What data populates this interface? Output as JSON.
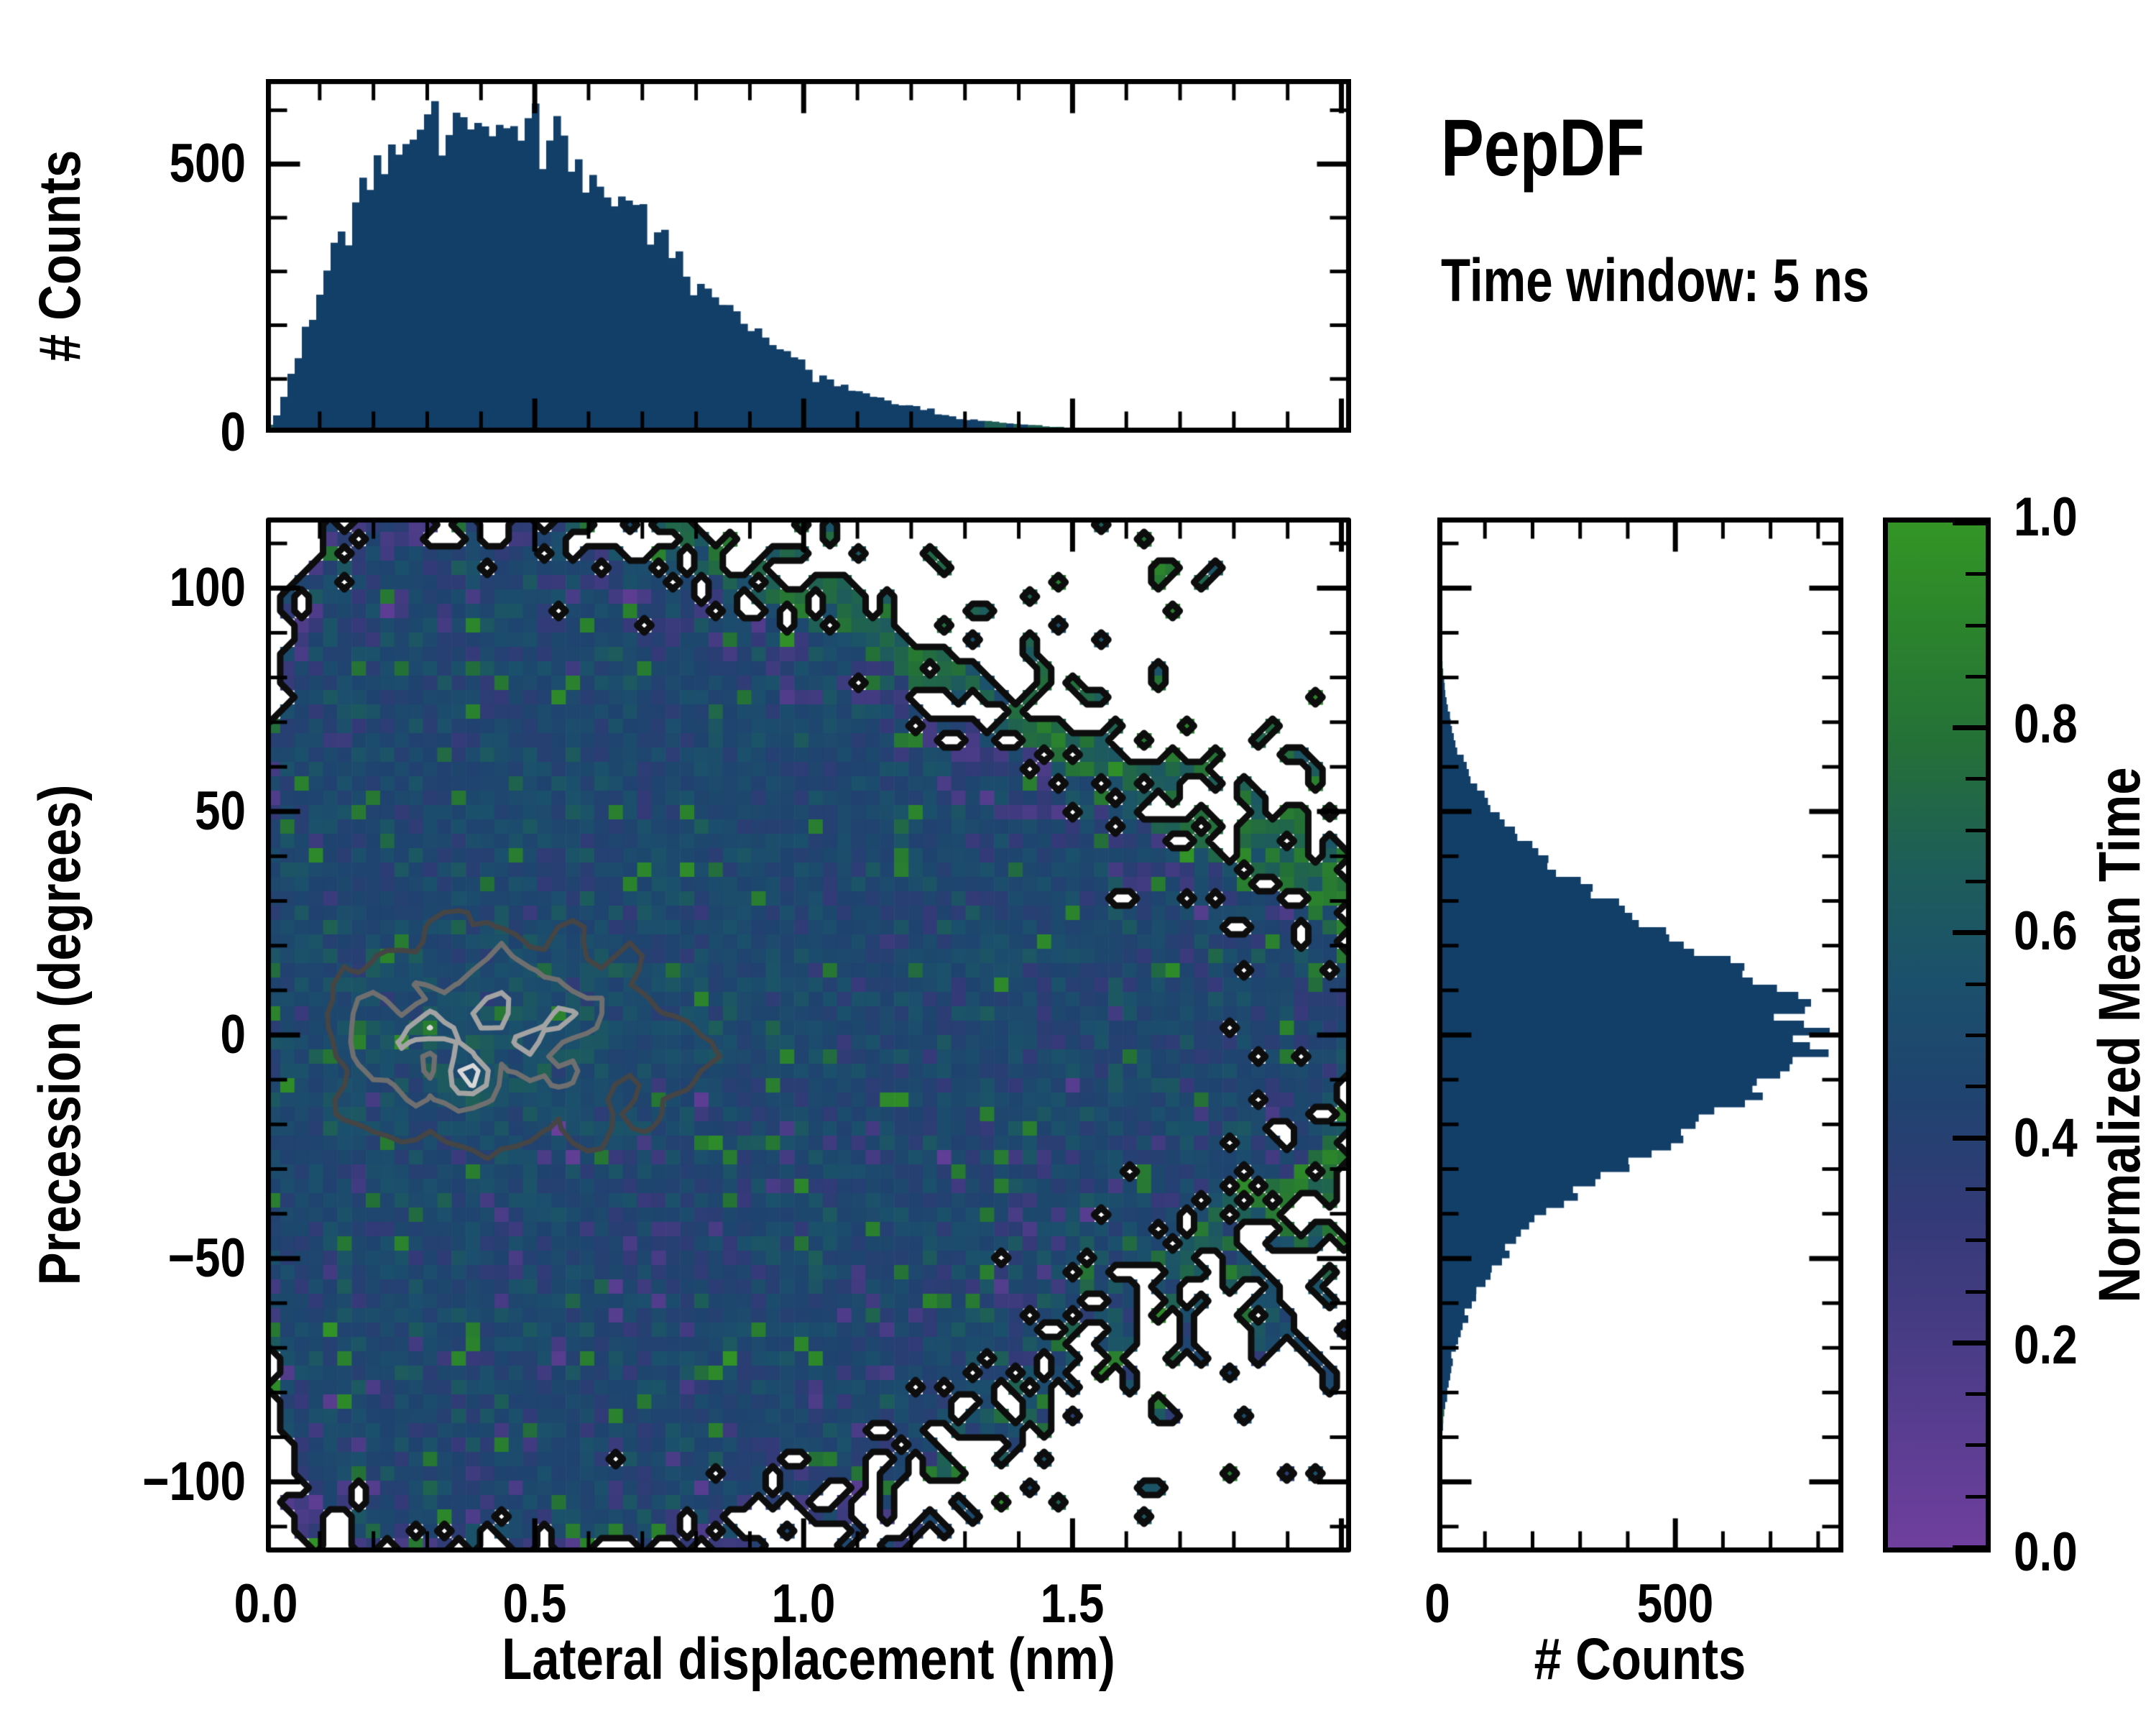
{
  "title": {
    "name": "PepDF",
    "subtitle": "Time window: 5 ns"
  },
  "labels": {
    "top_ylabel": "# Counts",
    "main_xlabel": "Lateral displacement (nm)",
    "main_ylabel": "Precession (degrees)",
    "right_xlabel": "# Counts",
    "cbar_label": "Normalized Mean Time"
  },
  "colors": {
    "background": "#ffffff",
    "axis": "#000000",
    "hist_bar": "#123f68",
    "hist_bar_tail": "#1e5f55",
    "contour_levels": [
      "#0d0d0d",
      "#454545",
      "#6f6f6f",
      "#a3a3a3",
      "#d8d8d8"
    ],
    "colormap_stops": [
      [
        0.0,
        "#6f3f9e"
      ],
      [
        0.18,
        "#4c3c88"
      ],
      [
        0.32,
        "#343a78"
      ],
      [
        0.44,
        "#1f436f"
      ],
      [
        0.55,
        "#1b506c"
      ],
      [
        0.66,
        "#1d5d5a"
      ],
      [
        0.78,
        "#247038"
      ],
      [
        0.9,
        "#2b842c"
      ],
      [
        1.0,
        "#339525"
      ]
    ]
  },
  "chart_data": [
    {
      "id": "top-histogram",
      "type": "bar",
      "ylabel": "# Counts",
      "yticks": [
        {
          "v": 0,
          "label": "0"
        },
        {
          "v": 500,
          "label": "500"
        }
      ],
      "minor_y_step": 100,
      "ylim": [
        0,
        658
      ],
      "xlim": [
        0,
        2.018
      ],
      "bins": 151,
      "noise": 0.06,
      "seed": 7,
      "tail_threshold": 22,
      "profile": [
        [
          0.0,
          4
        ],
        [
          0.02,
          30
        ],
        [
          0.04,
          90
        ],
        [
          0.06,
          150
        ],
        [
          0.08,
          215
        ],
        [
          0.1,
          265
        ],
        [
          0.12,
          320
        ],
        [
          0.14,
          370
        ],
        [
          0.16,
          405
        ],
        [
          0.18,
          445
        ],
        [
          0.2,
          470
        ],
        [
          0.23,
          500
        ],
        [
          0.26,
          530
        ],
        [
          0.29,
          550
        ],
        [
          0.32,
          565
        ],
        [
          0.35,
          572
        ],
        [
          0.38,
          578
        ],
        [
          0.41,
          585
        ],
        [
          0.44,
          578
        ],
        [
          0.47,
          558
        ],
        [
          0.5,
          540
        ],
        [
          0.53,
          522
        ],
        [
          0.56,
          505
        ],
        [
          0.59,
          488
        ],
        [
          0.62,
          462
        ],
        [
          0.65,
          430
        ],
        [
          0.68,
          405
        ],
        [
          0.71,
          378
        ],
        [
          0.74,
          350
        ],
        [
          0.77,
          320
        ],
        [
          0.8,
          292
        ],
        [
          0.83,
          262
        ],
        [
          0.86,
          235
        ],
        [
          0.89,
          210
        ],
        [
          0.92,
          185
        ],
        [
          0.95,
          162
        ],
        [
          0.98,
          142
        ],
        [
          1.01,
          124
        ],
        [
          1.05,
          100
        ],
        [
          1.1,
          79
        ],
        [
          1.15,
          62
        ],
        [
          1.2,
          47
        ],
        [
          1.25,
          36
        ],
        [
          1.3,
          27
        ],
        [
          1.35,
          21
        ],
        [
          1.4,
          16
        ],
        [
          1.45,
          12
        ],
        [
          1.5,
          9
        ],
        [
          1.56,
          7
        ],
        [
          1.62,
          5
        ],
        [
          1.68,
          4
        ],
        [
          1.75,
          3
        ],
        [
          1.82,
          2
        ],
        [
          1.9,
          2
        ],
        [
          2.018,
          1
        ]
      ]
    },
    {
      "id": "main-heatmap",
      "type": "heatmap2d",
      "xlabel": "Lateral displacement (nm)",
      "ylabel": "Precession (degrees)",
      "xlim": [
        0,
        2.018
      ],
      "ylim": [
        -115.8,
        115.8
      ],
      "xticks": [
        {
          "v": 0.0,
          "label": "0.0"
        },
        {
          "v": 0.5,
          "label": "0.5"
        },
        {
          "v": 1.0,
          "label": "1.0"
        },
        {
          "v": 1.5,
          "label": "1.5"
        }
      ],
      "yticks": [
        {
          "v": 100,
          "label": "100"
        },
        {
          "v": 50,
          "label": "50"
        },
        {
          "v": 0,
          "label": "0"
        },
        {
          "v": -50,
          "label": "−50"
        },
        {
          "v": -100,
          "label": "−100"
        }
      ],
      "minor_x_step": 0.1,
      "minor_y_step": 10,
      "grid": {
        "nx": 76,
        "ny": 72
      },
      "density": {
        "k": 1.8
      },
      "value_field": {
        "core_mean": 0.47,
        "core_sigma": 0.07,
        "center_boost": 0.07,
        "edge_base": 0.3,
        "edge_x_slope": 0.2,
        "edge_top_right_boost": 0.18,
        "edge_bottom_drop": 0.12,
        "right_low_boost": 0.12,
        "speckle_green": 0.84,
        "speckle_purple": 0.21
      },
      "contour_fractions": [
        0.42,
        0.62,
        0.8,
        0.93
      ],
      "seed": 42
    },
    {
      "id": "right-histogram",
      "type": "barh",
      "xlabel": "# Counts",
      "xticks": [
        {
          "v": 0,
          "label": "0"
        },
        {
          "v": 500,
          "label": "500"
        }
      ],
      "minor_x_step": 100,
      "xlim": [
        0,
        853
      ],
      "ylim": [
        -115.8,
        115.8
      ],
      "bins": 144,
      "noise": 0.05,
      "seed": 11,
      "tail_threshold": 15,
      "profile": [
        [
          -115,
          1
        ],
        [
          -110,
          2
        ],
        [
          -105,
          3
        ],
        [
          -100,
          5
        ],
        [
          -95,
          7
        ],
        [
          -90,
          10
        ],
        [
          -85,
          14
        ],
        [
          -80,
          20
        ],
        [
          -75,
          28
        ],
        [
          -70,
          40
        ],
        [
          -65,
          55
        ],
        [
          -60,
          75
        ],
        [
          -55,
          100
        ],
        [
          -50,
          135
        ],
        [
          -45,
          175
        ],
        [
          -40,
          230
        ],
        [
          -35,
          300
        ],
        [
          -30,
          375
        ],
        [
          -25,
          455
        ],
        [
          -20,
          545
        ],
        [
          -15,
          630
        ],
        [
          -10,
          710
        ],
        [
          -5,
          780
        ],
        [
          -2,
          820
        ],
        [
          0,
          835
        ],
        [
          3,
          810
        ],
        [
          6,
          770
        ],
        [
          10,
          705
        ],
        [
          15,
          615
        ],
        [
          20,
          525
        ],
        [
          25,
          440
        ],
        [
          30,
          360
        ],
        [
          35,
          285
        ],
        [
          40,
          220
        ],
        [
          45,
          165
        ],
        [
          50,
          120
        ],
        [
          55,
          85
        ],
        [
          60,
          60
        ],
        [
          65,
          42
        ],
        [
          70,
          28
        ],
        [
          75,
          19
        ],
        [
          80,
          13
        ],
        [
          85,
          9
        ],
        [
          90,
          6
        ],
        [
          95,
          4
        ],
        [
          100,
          3
        ],
        [
          105,
          2
        ],
        [
          110,
          1
        ],
        [
          115,
          1
        ]
      ]
    },
    {
      "id": "colorbar",
      "type": "colorbar",
      "label": "Normalized Mean Time",
      "range": [
        0,
        1
      ],
      "minor_step": 0.05,
      "ticks": [
        {
          "v": 1.0,
          "label": "1.0"
        },
        {
          "v": 0.8,
          "label": "0.8"
        },
        {
          "v": 0.6,
          "label": "0.6"
        },
        {
          "v": 0.4,
          "label": "0.4"
        },
        {
          "v": 0.2,
          "label": "0.2"
        },
        {
          "v": 0.0,
          "label": "0.0"
        }
      ]
    }
  ]
}
